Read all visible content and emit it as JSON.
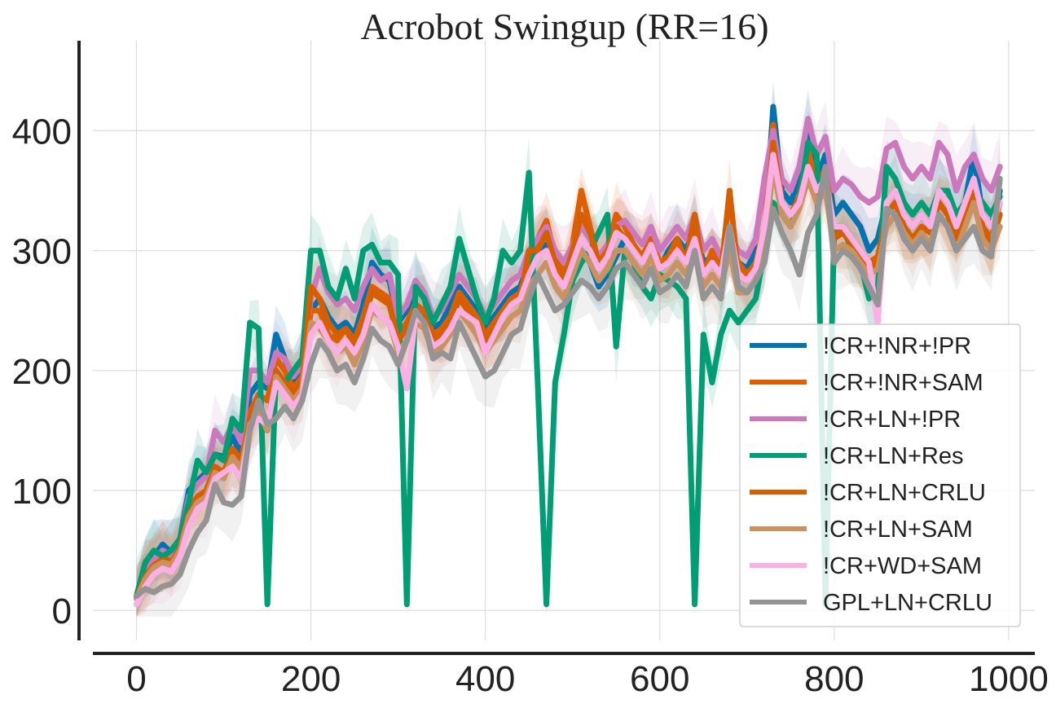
{
  "chart_data": {
    "type": "line",
    "title": "Acrobot Swingup (RR=16)",
    "xlabel": "",
    "ylabel": "",
    "xlim": [
      -50,
      1030
    ],
    "ylim": [
      -25,
      475
    ],
    "x_ticks": [
      0,
      200,
      400,
      600,
      800,
      1000
    ],
    "y_ticks": [
      0,
      100,
      200,
      300,
      400
    ],
    "grid": true,
    "shaded_bands": true,
    "legend_position": "lower-right",
    "x": [
      0,
      10,
      20,
      30,
      40,
      50,
      60,
      70,
      80,
      90,
      100,
      110,
      120,
      130,
      140,
      150,
      160,
      170,
      180,
      190,
      200,
      210,
      220,
      230,
      240,
      250,
      260,
      270,
      280,
      290,
      300,
      310,
      320,
      330,
      340,
      350,
      360,
      370,
      380,
      390,
      400,
      410,
      420,
      430,
      440,
      450,
      460,
      470,
      480,
      490,
      500,
      510,
      520,
      530,
      540,
      550,
      560,
      570,
      580,
      590,
      600,
      610,
      620,
      630,
      640,
      650,
      660,
      670,
      680,
      690,
      700,
      710,
      720,
      730,
      740,
      750,
      760,
      770,
      780,
      790,
      800,
      810,
      820,
      830,
      840,
      850,
      860,
      870,
      880,
      890,
      900,
      910,
      920,
      930,
      940,
      950,
      960,
      970,
      980,
      990
    ],
    "series": [
      {
        "name": "!CR+!NR+!PR",
        "color": "#0173b2",
        "values": [
          12,
          35,
          45,
          55,
          48,
          60,
          100,
          108,
          115,
          130,
          128,
          145,
          130,
          180,
          190,
          185,
          230,
          210,
          190,
          200,
          250,
          260,
          245,
          235,
          240,
          230,
          255,
          290,
          280,
          275,
          240,
          250,
          270,
          260,
          235,
          240,
          255,
          270,
          260,
          250,
          235,
          245,
          255,
          265,
          270,
          290,
          300,
          305,
          280,
          270,
          285,
          300,
          290,
          270,
          280,
          295,
          310,
          300,
          290,
          305,
          285,
          300,
          310,
          300,
          320,
          290,
          295,
          280,
          300,
          290,
          285,
          300,
          310,
          420,
          350,
          340,
          360,
          405,
          360,
          380,
          330,
          340,
          330,
          320,
          300,
          310,
          340,
          350,
          330,
          320,
          330,
          320,
          350,
          340,
          320,
          340,
          380,
          330,
          320,
          350
        ]
      },
      {
        "name": "!CR+!NR+SAM",
        "color": "#de5e02",
        "values": [
          10,
          30,
          40,
          45,
          42,
          55,
          85,
          95,
          100,
          120,
          115,
          135,
          125,
          165,
          180,
          175,
          210,
          200,
          185,
          195,
          250,
          250,
          230,
          225,
          235,
          225,
          245,
          270,
          265,
          260,
          230,
          240,
          255,
          250,
          230,
          235,
          245,
          265,
          255,
          245,
          230,
          240,
          250,
          260,
          265,
          290,
          310,
          325,
          295,
          280,
          305,
          350,
          320,
          290,
          300,
          330,
          320,
          305,
          295,
          310,
          290,
          295,
          310,
          290,
          315,
          280,
          300,
          285,
          310,
          290,
          280,
          290,
          320,
          405,
          340,
          330,
          345,
          385,
          350,
          370,
          315,
          320,
          310,
          300,
          290,
          295,
          330,
          340,
          320,
          310,
          320,
          315,
          340,
          330,
          310,
          330,
          360,
          320,
          310,
          340
        ]
      },
      {
        "name": "!CR+LN+!PR",
        "color": "#cc78bc",
        "values": [
          11,
          32,
          43,
          50,
          46,
          58,
          95,
          105,
          112,
          150,
          140,
          155,
          140,
          200,
          200,
          190,
          215,
          210,
          195,
          205,
          260,
          285,
          265,
          255,
          260,
          250,
          270,
          285,
          275,
          280,
          245,
          255,
          275,
          265,
          245,
          250,
          265,
          280,
          270,
          260,
          245,
          255,
          265,
          275,
          280,
          300,
          310,
          320,
          300,
          290,
          305,
          320,
          310,
          295,
          305,
          320,
          325,
          315,
          305,
          320,
          300,
          310,
          320,
          310,
          330,
          300,
          310,
          295,
          315,
          300,
          295,
          310,
          360,
          400,
          360,
          350,
          370,
          410,
          380,
          395,
          350,
          360,
          355,
          345,
          340,
          345,
          385,
          390,
          370,
          360,
          370,
          360,
          390,
          380,
          350,
          370,
          380,
          360,
          350,
          370
        ]
      },
      {
        "name": "!CR+LN+Res",
        "color": "#029e73",
        "values": [
          12,
          40,
          50,
          45,
          50,
          60,
          90,
          125,
          115,
          130,
          125,
          160,
          150,
          240,
          235,
          5,
          200,
          190,
          200,
          210,
          300,
          300,
          270,
          260,
          285,
          260,
          300,
          305,
          290,
          290,
          280,
          5,
          270,
          260,
          240,
          255,
          270,
          310,
          285,
          260,
          240,
          260,
          300,
          290,
          300,
          365,
          190,
          5,
          190,
          230,
          275,
          290,
          300,
          315,
          330,
          220,
          300,
          290,
          270,
          260,
          280,
          275,
          270,
          260,
          5,
          230,
          190,
          230,
          250,
          240,
          250,
          260,
          300,
          340,
          330,
          320,
          340,
          390,
          380,
          5,
          320,
          320,
          300,
          290,
          260,
          270,
          370,
          360,
          340,
          330,
          340,
          330,
          350,
          350,
          330,
          340,
          350,
          340,
          330,
          345
        ]
      },
      {
        "name": "!CR+LN+CRLU",
        "color": "#d55e00",
        "values": [
          10,
          28,
          38,
          42,
          40,
          52,
          80,
          92,
          98,
          118,
          112,
          132,
          122,
          160,
          170,
          150,
          200,
          190,
          180,
          190,
          270,
          260,
          240,
          230,
          235,
          220,
          240,
          265,
          260,
          255,
          225,
          235,
          250,
          245,
          225,
          230,
          240,
          260,
          250,
          240,
          225,
          235,
          245,
          255,
          260,
          300,
          300,
          315,
          290,
          275,
          300,
          330,
          315,
          290,
          300,
          320,
          310,
          300,
          290,
          305,
          285,
          290,
          300,
          290,
          330,
          280,
          290,
          280,
          350,
          280,
          275,
          285,
          310,
          390,
          340,
          330,
          340,
          370,
          345,
          360,
          310,
          315,
          305,
          295,
          285,
          290,
          330,
          340,
          320,
          310,
          320,
          315,
          340,
          330,
          310,
          330,
          350,
          320,
          305,
          330
        ]
      },
      {
        "name": "!CR+LN+SAM",
        "color": "#ca9161",
        "values": [
          10,
          26,
          36,
          40,
          38,
          50,
          78,
          90,
          95,
          115,
          110,
          128,
          118,
          155,
          165,
          150,
          195,
          185,
          175,
          185,
          240,
          235,
          225,
          215,
          220,
          205,
          225,
          250,
          245,
          240,
          215,
          225,
          240,
          235,
          215,
          220,
          230,
          250,
          240,
          230,
          215,
          225,
          235,
          245,
          250,
          270,
          280,
          290,
          270,
          260,
          280,
          300,
          290,
          275,
          285,
          300,
          300,
          290,
          280,
          295,
          275,
          280,
          290,
          280,
          300,
          270,
          280,
          270,
          300,
          265,
          265,
          275,
          300,
          370,
          330,
          320,
          335,
          360,
          340,
          350,
          300,
          305,
          300,
          290,
          280,
          285,
          320,
          330,
          315,
          305,
          315,
          305,
          330,
          320,
          300,
          320,
          340,
          310,
          300,
          320
        ]
      },
      {
        "name": "!CR+WD+SAM",
        "color": "#fbafe4",
        "values": [
          5,
          20,
          30,
          35,
          32,
          45,
          70,
          85,
          90,
          110,
          115,
          120,
          110,
          150,
          160,
          155,
          190,
          180,
          170,
          180,
          230,
          240,
          225,
          215,
          225,
          215,
          230,
          255,
          245,
          240,
          220,
          185,
          245,
          240,
          220,
          225,
          235,
          250,
          245,
          240,
          215,
          230,
          245,
          255,
          260,
          280,
          295,
          300,
          280,
          270,
          290,
          310,
          300,
          285,
          295,
          315,
          310,
          300,
          290,
          305,
          285,
          290,
          300,
          290,
          310,
          280,
          290,
          280,
          320,
          280,
          275,
          285,
          320,
          380,
          340,
          330,
          340,
          370,
          350,
          360,
          320,
          320,
          310,
          300,
          290,
          240,
          340,
          350,
          330,
          320,
          330,
          320,
          350,
          340,
          320,
          340,
          360,
          330,
          320,
          340
        ]
      },
      {
        "name": "GPL+LN+CRLU",
        "color": "#949494",
        "values": [
          12,
          18,
          15,
          20,
          22,
          30,
          50,
          65,
          75,
          105,
          90,
          88,
          95,
          150,
          175,
          155,
          160,
          170,
          160,
          175,
          205,
          225,
          215,
          200,
          205,
          190,
          210,
          235,
          225,
          220,
          205,
          225,
          250,
          240,
          210,
          215,
          210,
          240,
          225,
          210,
          195,
          200,
          215,
          230,
          235,
          260,
          280,
          265,
          250,
          255,
          265,
          275,
          270,
          260,
          270,
          285,
          290,
          280,
          270,
          285,
          265,
          270,
          280,
          270,
          300,
          260,
          270,
          260,
          320,
          270,
          265,
          275,
          290,
          335,
          315,
          300,
          280,
          315,
          330,
          370,
          290,
          300,
          295,
          285,
          270,
          255,
          335,
          330,
          310,
          300,
          310,
          300,
          330,
          320,
          300,
          310,
          320,
          300,
          295,
          360
        ]
      }
    ]
  }
}
